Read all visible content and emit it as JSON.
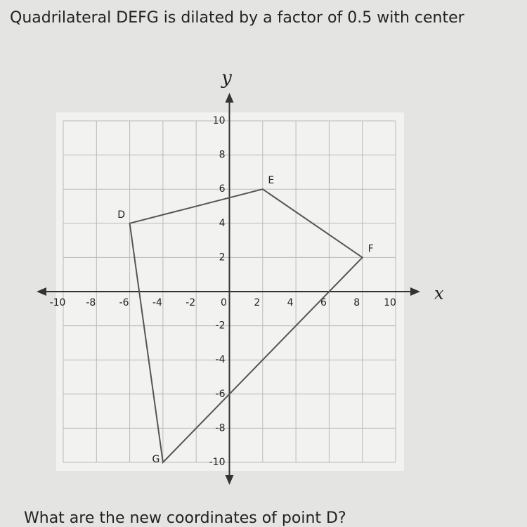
{
  "question": "Quadrilateral DEFG is dilated by a factor of 0.5 with center",
  "prompt": "What are the new coordinates of point D?",
  "chart_data": {
    "type": "polygon",
    "x_label": "x",
    "y_label": "y",
    "series": [
      {
        "labels": [
          "D",
          "E",
          "F",
          "G"
        ],
        "x": [
          -6,
          2,
          8,
          -4
        ],
        "values": [
          4,
          6,
          2,
          -10
        ],
        "color": "#555555"
      }
    ],
    "xlim": [
      -10,
      10
    ],
    "ylim": [
      -10,
      10
    ],
    "xticks": [
      -10,
      -8,
      -6,
      -4,
      -2,
      0,
      2,
      4,
      6,
      8,
      10
    ],
    "yticks": [
      -10,
      -8,
      -6,
      -4,
      -2,
      2,
      4,
      6,
      8,
      10
    ],
    "grid": true
  }
}
